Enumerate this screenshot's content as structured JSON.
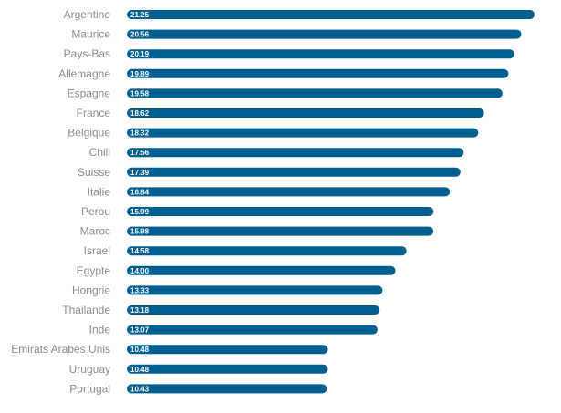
{
  "chart_data": {
    "type": "bar",
    "orientation": "horizontal",
    "bar_color": "#005f8e",
    "label_color": "#8a8a8a",
    "value_label_color": "#ffffff",
    "grid": false,
    "legend": "none",
    "xlim": [
      0,
      21.25
    ],
    "categories": [
      "Argentine",
      "Maurice",
      "Pays-Bas",
      "Allemagne",
      "Espagne",
      "France",
      "Belgique",
      "Chili",
      "Suisse",
      "Italie",
      "Perou",
      "Maroc",
      "Israel",
      "Egypte",
      "Hongrie",
      "Thailande",
      "Inde",
      "Emirats Arabes Unis",
      "Uruguay",
      "Portugal"
    ],
    "values": [
      21.25,
      20.56,
      20.19,
      19.89,
      19.58,
      18.62,
      18.32,
      17.56,
      17.39,
      16.84,
      15.99,
      15.98,
      14.58,
      14.0,
      13.33,
      13.18,
      13.07,
      10.48,
      10.48,
      10.43
    ],
    "value_labels": [
      "21.25",
      "20.56",
      "20.19",
      "19.89",
      "19.58",
      "18.62",
      "18.32",
      "17.56",
      "17.39",
      "16.84",
      "15.99",
      "15.98",
      "14.58",
      "14,00",
      "13.33",
      "13.18",
      "13.07",
      "10.48",
      "10.48",
      "10.43"
    ]
  }
}
